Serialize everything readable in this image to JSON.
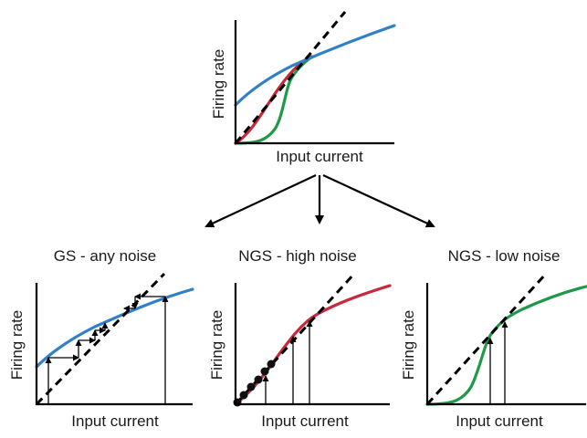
{
  "labels": {
    "firing_rate": "Firing rate",
    "input_current": "Input current"
  },
  "panels": {
    "gs": {
      "title": "GS - any noise"
    },
    "ngs_high": {
      "title": "NGS - high noise"
    },
    "ngs_low": {
      "title": "NGS - low noise"
    }
  },
  "colors": {
    "gs_blue": "#2f80c8",
    "ngs_high_red": "#c8283c",
    "ngs_low_green": "#1e9a46",
    "identity_line": "#000000",
    "axes": "#000000"
  }
}
